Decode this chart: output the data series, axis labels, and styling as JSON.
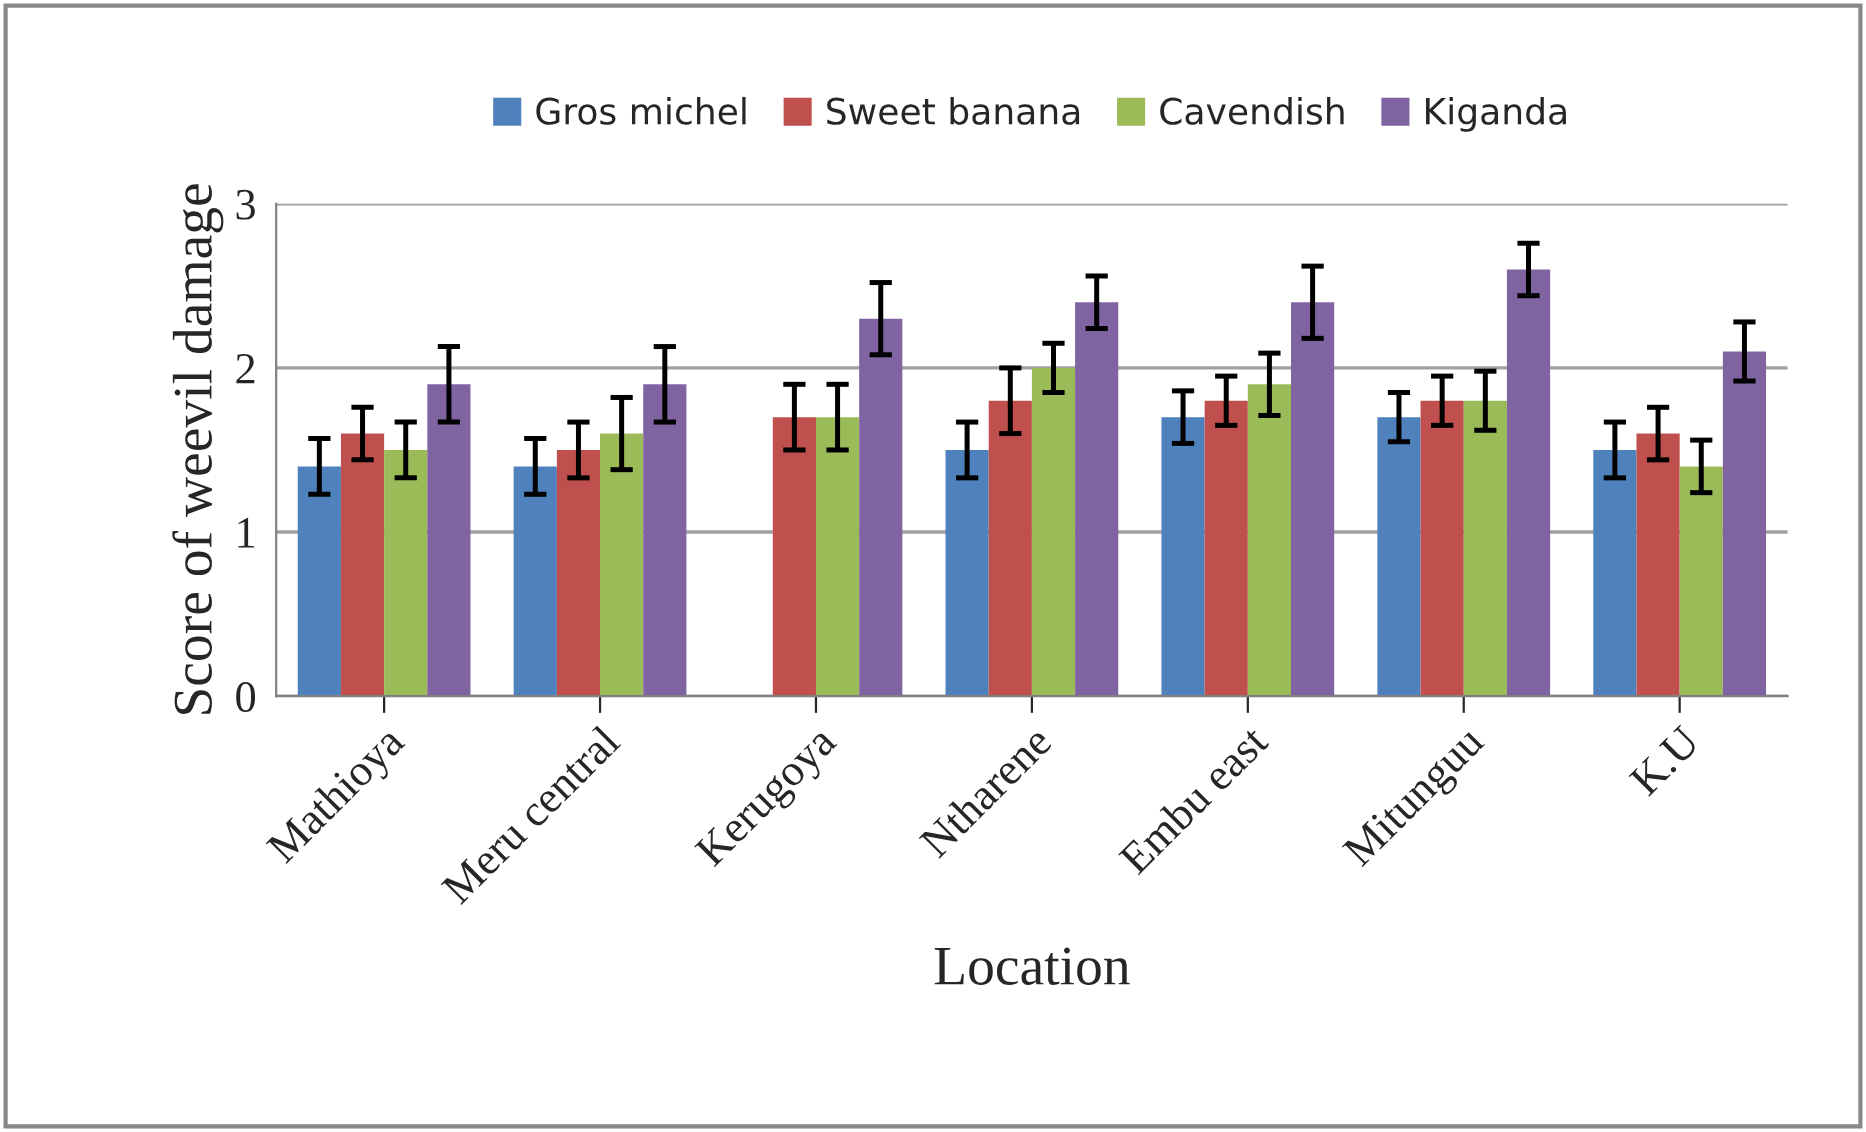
{
  "chart_data": {
    "type": "bar",
    "xlabel": "Location",
    "ylabel": "Score of weevil damage",
    "categories": [
      "Mathioya",
      "Meru central",
      "Kerugoya",
      "Ntharene",
      "Embu east",
      "Mitunguu",
      "K.U"
    ],
    "series": [
      {
        "name": "Gros michel",
        "color": "#4f81bd",
        "values": [
          1.4,
          1.4,
          null,
          1.5,
          1.7,
          1.7,
          1.5
        ],
        "errors": [
          0.17,
          0.17,
          null,
          0.17,
          0.16,
          0.15,
          0.17
        ]
      },
      {
        "name": "Sweet banana",
        "color": "#c0504d",
        "values": [
          1.6,
          1.5,
          1.7,
          1.8,
          1.8,
          1.8,
          1.6
        ],
        "errors": [
          0.16,
          0.17,
          0.2,
          0.2,
          0.15,
          0.15,
          0.16
        ]
      },
      {
        "name": "Cavendish",
        "color": "#9bbb59",
        "values": [
          1.5,
          1.6,
          1.7,
          2.0,
          1.9,
          1.8,
          1.4
        ],
        "errors": [
          0.17,
          0.22,
          0.2,
          0.15,
          0.19,
          0.18,
          0.16
        ]
      },
      {
        "name": "Kiganda",
        "color": "#8064a2",
        "values": [
          1.9,
          1.9,
          2.3,
          2.4,
          2.4,
          2.6,
          2.1
        ],
        "errors": [
          0.23,
          0.23,
          0.22,
          0.16,
          0.22,
          0.16,
          0.18
        ]
      }
    ],
    "ylim": [
      0,
      3
    ],
    "yticks": [
      0,
      1,
      2,
      3
    ],
    "grid": "y",
    "legend": "top"
  }
}
